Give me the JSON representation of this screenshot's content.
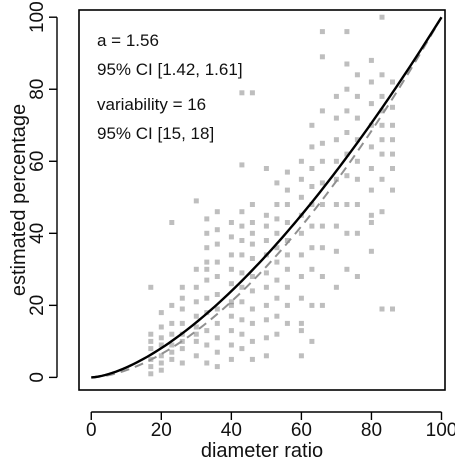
{
  "chart_data": {
    "type": "scatter",
    "xlabel": "diameter ratio",
    "ylabel": "estimated percentage",
    "xlim": [
      -3.5,
      101
    ],
    "ylim": [
      -3.5,
      102
    ],
    "xticks": [
      0,
      20,
      40,
      60,
      80,
      100
    ],
    "yticks": [
      0,
      20,
      40,
      60,
      80,
      100
    ],
    "grid": false,
    "annotations": [
      "a = 1.56",
      "95% CI [1.42, 1.61]",
      "variability = 16",
      "95% CI [15, 18]"
    ],
    "fit": {
      "exponent": 1.56,
      "color": "#000000"
    },
    "reference": {
      "exponent": 1.7,
      "color": "#909090",
      "style": "dashed"
    },
    "point_color": "#6e6e6e",
    "points": [
      [
        17,
        3
      ],
      [
        17,
        5
      ],
      [
        17,
        8
      ],
      [
        17,
        10
      ],
      [
        17,
        12
      ],
      [
        17,
        25
      ],
      [
        17,
        1
      ],
      [
        20,
        2
      ],
      [
        20,
        6
      ],
      [
        20,
        9
      ],
      [
        20,
        11
      ],
      [
        20,
        14
      ],
      [
        20,
        18
      ],
      [
        20,
        4
      ],
      [
        23,
        5
      ],
      [
        23,
        9
      ],
      [
        23,
        12
      ],
      [
        23,
        15
      ],
      [
        23,
        20
      ],
      [
        23,
        43
      ],
      [
        23,
        7
      ],
      [
        26,
        4
      ],
      [
        26,
        8
      ],
      [
        26,
        12
      ],
      [
        26,
        15
      ],
      [
        26,
        19
      ],
      [
        26,
        22
      ],
      [
        26,
        25
      ],
      [
        26,
        10
      ],
      [
        30,
        6
      ],
      [
        30,
        10
      ],
      [
        30,
        14
      ],
      [
        30,
        17
      ],
      [
        30,
        21
      ],
      [
        30,
        25
      ],
      [
        30,
        30
      ],
      [
        30,
        49
      ],
      [
        30,
        12
      ],
      [
        33,
        4
      ],
      [
        33,
        9
      ],
      [
        33,
        13
      ],
      [
        33,
        18
      ],
      [
        33,
        22
      ],
      [
        33,
        27
      ],
      [
        33,
        32
      ],
      [
        33,
        36
      ],
      [
        33,
        40
      ],
      [
        33,
        44
      ],
      [
        33,
        30
      ],
      [
        36,
        3
      ],
      [
        36,
        7
      ],
      [
        36,
        11
      ],
      [
        36,
        15
      ],
      [
        36,
        19
      ],
      [
        36,
        23
      ],
      [
        36,
        28
      ],
      [
        36,
        32
      ],
      [
        36,
        37
      ],
      [
        36,
        41
      ],
      [
        36,
        46
      ],
      [
        40,
        5
      ],
      [
        40,
        9
      ],
      [
        40,
        13
      ],
      [
        40,
        17
      ],
      [
        40,
        21
      ],
      [
        40,
        26
      ],
      [
        40,
        30
      ],
      [
        40,
        34
      ],
      [
        40,
        39
      ],
      [
        40,
        43
      ],
      [
        40,
        20
      ],
      [
        43,
        8
      ],
      [
        43,
        12
      ],
      [
        43,
        16
      ],
      [
        43,
        21
      ],
      [
        43,
        25
      ],
      [
        43,
        29
      ],
      [
        43,
        34
      ],
      [
        43,
        38
      ],
      [
        43,
        42
      ],
      [
        43,
        46
      ],
      [
        43,
        59
      ],
      [
        43,
        79
      ],
      [
        46,
        5
      ],
      [
        46,
        10
      ],
      [
        46,
        15
      ],
      [
        46,
        19
      ],
      [
        46,
        24
      ],
      [
        46,
        28
      ],
      [
        46,
        33
      ],
      [
        46,
        37
      ],
      [
        46,
        40
      ],
      [
        46,
        43
      ],
      [
        46,
        48
      ],
      [
        46,
        79
      ],
      [
        50,
        6
      ],
      [
        50,
        11
      ],
      [
        50,
        16
      ],
      [
        50,
        20
      ],
      [
        50,
        25
      ],
      [
        50,
        29
      ],
      [
        50,
        34
      ],
      [
        50,
        38
      ],
      [
        50,
        42
      ],
      [
        50,
        45
      ],
      [
        50,
        58
      ],
      [
        53,
        12
      ],
      [
        53,
        17
      ],
      [
        53,
        22
      ],
      [
        53,
        27
      ],
      [
        53,
        32
      ],
      [
        53,
        36
      ],
      [
        53,
        40
      ],
      [
        53,
        44
      ],
      [
        53,
        48
      ],
      [
        53,
        54
      ],
      [
        56,
        15
      ],
      [
        56,
        20
      ],
      [
        56,
        25
      ],
      [
        56,
        30
      ],
      [
        56,
        34
      ],
      [
        56,
        38
      ],
      [
        56,
        43
      ],
      [
        56,
        48
      ],
      [
        56,
        52
      ],
      [
        56,
        57
      ],
      [
        60,
        6
      ],
      [
        60,
        13
      ],
      [
        60,
        22
      ],
      [
        60,
        28
      ],
      [
        60,
        34
      ],
      [
        60,
        40
      ],
      [
        60,
        45
      ],
      [
        60,
        50
      ],
      [
        60,
        55
      ],
      [
        60,
        60
      ],
      [
        60,
        15
      ],
      [
        63,
        10
      ],
      [
        63,
        20
      ],
      [
        63,
        30
      ],
      [
        63,
        36
      ],
      [
        63,
        42
      ],
      [
        63,
        48
      ],
      [
        63,
        53
      ],
      [
        63,
        58
      ],
      [
        63,
        64
      ],
      [
        63,
        70
      ],
      [
        66,
        20
      ],
      [
        66,
        28
      ],
      [
        66,
        36
      ],
      [
        66,
        42
      ],
      [
        66,
        48
      ],
      [
        66,
        54
      ],
      [
        66,
        60
      ],
      [
        66,
        65
      ],
      [
        66,
        74
      ],
      [
        66,
        96
      ],
      [
        66,
        89
      ],
      [
        70,
        25
      ],
      [
        70,
        35
      ],
      [
        70,
        42
      ],
      [
        70,
        48
      ],
      [
        70,
        55
      ],
      [
        70,
        60
      ],
      [
        70,
        66
      ],
      [
        70,
        72
      ],
      [
        70,
        78
      ],
      [
        73,
        30
      ],
      [
        73,
        40
      ],
      [
        73,
        48
      ],
      [
        73,
        56
      ],
      [
        73,
        62
      ],
      [
        73,
        68
      ],
      [
        73,
        74
      ],
      [
        73,
        80
      ],
      [
        73,
        87
      ],
      [
        73,
        96
      ],
      [
        76,
        28
      ],
      [
        76,
        40
      ],
      [
        76,
        48
      ],
      [
        76,
        55
      ],
      [
        76,
        60
      ],
      [
        76,
        66
      ],
      [
        76,
        72
      ],
      [
        76,
        78
      ],
      [
        76,
        84
      ],
      [
        80,
        35
      ],
      [
        80,
        45
      ],
      [
        80,
        52
      ],
      [
        80,
        58
      ],
      [
        80,
        64
      ],
      [
        80,
        70
      ],
      [
        80,
        76
      ],
      [
        80,
        82
      ],
      [
        80,
        88
      ],
      [
        80,
        43
      ],
      [
        83,
        19
      ],
      [
        83,
        46
      ],
      [
        83,
        55
      ],
      [
        83,
        62
      ],
      [
        83,
        66
      ],
      [
        83,
        70
      ],
      [
        83,
        74
      ],
      [
        83,
        78
      ],
      [
        83,
        84
      ],
      [
        83,
        100
      ],
      [
        86,
        19
      ],
      [
        86,
        52
      ],
      [
        86,
        58
      ],
      [
        86,
        62
      ],
      [
        86,
        66
      ],
      [
        86,
        70
      ],
      [
        86,
        75
      ],
      [
        86,
        82
      ]
    ]
  }
}
